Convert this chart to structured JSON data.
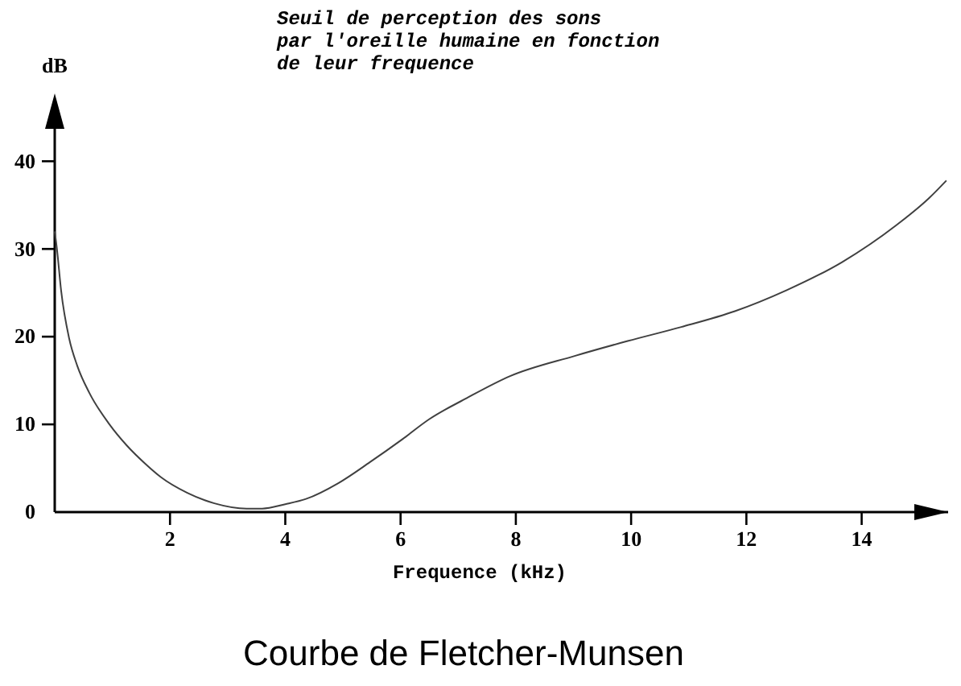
{
  "chart_data": {
    "type": "line",
    "title": "Courbe de Fletcher-Munsen",
    "subtitle": "Seuil de perception des sons\npar l'oreille humaine en fonction\nde leur frequence",
    "xlabel": "Frequence (kHz)",
    "ylabel": "dB",
    "x": [
      0,
      0.04,
      0.11,
      0.25,
      0.39,
      0.6,
      0.95,
      1.25,
      1.59,
      1.84,
      2.3,
      2.77,
      3.33,
      3.6,
      4.0,
      4.36,
      4.92,
      5.47,
      6.03,
      6.5,
      7.15,
      7.9,
      9.02,
      9.94,
      10.87,
      11.8,
      12.7,
      13.66,
      14.6,
      15.17,
      15.47
    ],
    "series": [
      {
        "color": "#404040",
        "values": [
          32,
          29.9,
          25.3,
          19.8,
          16.7,
          13.6,
          10.0,
          7.6,
          5.4,
          4.0,
          2.2,
          1.0,
          0.4,
          0.4,
          0.9,
          1.5,
          3.3,
          5.7,
          8.3,
          10.6,
          13.0,
          15.5,
          17.8,
          19.5,
          21.1,
          22.9,
          25.3,
          28.5,
          32.7,
          35.8,
          37.8
        ]
      }
    ],
    "xlim": [
      0,
      15.5
    ],
    "ylim": [
      0,
      47
    ],
    "xticks": [
      2,
      4,
      6,
      8,
      10,
      12,
      14
    ],
    "yticks": [
      0,
      10,
      20,
      30,
      40
    ]
  }
}
